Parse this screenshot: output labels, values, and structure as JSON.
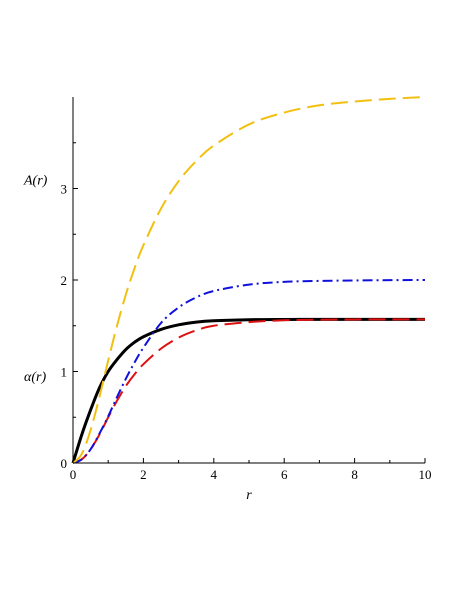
{
  "chart_data": {
    "type": "line",
    "title": "",
    "xlabel": "r",
    "ylabel": "",
    "annotations": [
      {
        "text": "A(r)",
        "y": 3.1
      },
      {
        "text": "α(r)",
        "y": 0.95
      }
    ],
    "xlim": [
      0,
      10
    ],
    "ylim": [
      0,
      4
    ],
    "xticks": [
      0,
      2,
      4,
      6,
      8,
      10
    ],
    "yticks": [
      0,
      1,
      2,
      3
    ],
    "grid": false,
    "x": [
      0,
      0.25,
      0.5,
      0.75,
      1,
      1.25,
      1.5,
      1.75,
      2,
      2.5,
      3,
      3.5,
      4,
      5,
      6,
      7,
      8,
      9,
      10
    ],
    "series": [
      {
        "color": "#000000",
        "dash": "solid",
        "width": 3,
        "values": [
          0,
          0.31,
          0.58,
          0.82,
          1.0,
          1.13,
          1.24,
          1.32,
          1.38,
          1.46,
          1.51,
          1.54,
          1.555,
          1.566,
          1.569,
          1.57,
          1.57,
          1.57,
          1.57
        ]
      },
      {
        "color": "#dd1111",
        "dash": "long-dash",
        "width": 2,
        "values": [
          0,
          0.04,
          0.15,
          0.31,
          0.5,
          0.68,
          0.84,
          0.97,
          1.08,
          1.25,
          1.37,
          1.45,
          1.5,
          1.54,
          1.56,
          1.566,
          1.569,
          1.57,
          1.57
        ]
      },
      {
        "color": "#1111dd",
        "dash": "dash-dot",
        "width": 2,
        "values": [
          0,
          0.04,
          0.15,
          0.32,
          0.51,
          0.72,
          0.92,
          1.1,
          1.26,
          1.53,
          1.7,
          1.81,
          1.88,
          1.95,
          1.98,
          1.99,
          1.995,
          1.998,
          2.0
        ]
      },
      {
        "color": "#f2c010",
        "dash": "long-dash",
        "width": 2,
        "values": [
          0,
          0.1,
          0.36,
          0.72,
          1.12,
          1.5,
          1.84,
          2.13,
          2.38,
          2.78,
          3.08,
          3.3,
          3.47,
          3.7,
          3.83,
          3.91,
          3.95,
          3.98,
          4.0
        ]
      }
    ]
  }
}
